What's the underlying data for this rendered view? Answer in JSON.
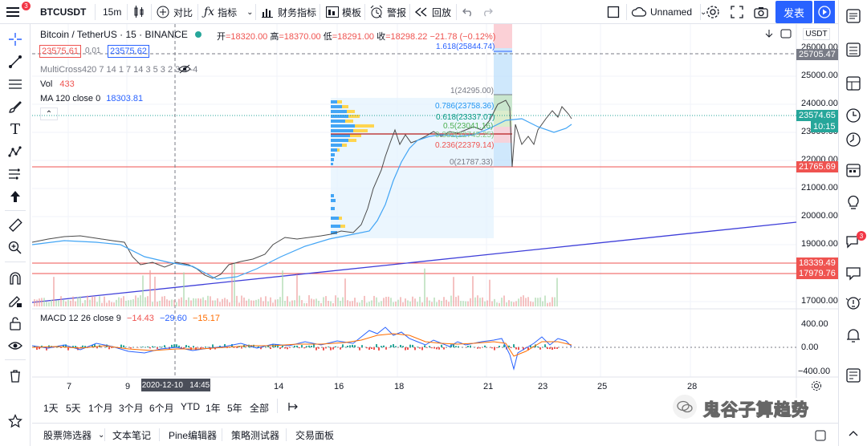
{
  "topbar": {
    "notif_count": "3",
    "symbol": "BTCUSDT",
    "interval": "15m",
    "compare": "对比",
    "indicators": "指标",
    "financials": "财务指标",
    "templates": "模板",
    "alert": "警报",
    "replay": "回放",
    "layout_name": "Unnamed",
    "publish": "发表"
  },
  "legend": {
    "title": "Bitcoin / TetherUS · 15 · BINANCE",
    "open_label": "开",
    "open": "=18320.00",
    "high_label": "高",
    "high": "=18370.00",
    "low_label": "低",
    "low": "=18291.00",
    "close_label": "收",
    "close": "=18298.22",
    "change": "−21.78 (−0.12%)",
    "bid": "23575.61",
    "spread": "0.01",
    "ask": "23575.62",
    "multicross": "MultiCross420 7 14 1 7 14 3 5 3 2 3 4 -4",
    "vol_label": "Vol",
    "vol": "433",
    "ma_label": "MA 120 close 0",
    "ma": "18303.81"
  },
  "fib": {
    "l1618": "1.618(25844.74)",
    "l1": "1(24295.00)",
    "l786": "0.786(23758.36)",
    "l618": "0.618(23337.07)",
    "l5": "0.5(23041.16)",
    "l382": "0.382(22745.25)",
    "l236": "0.236(22379.14)",
    "l0": "0(21787.33)"
  },
  "price_axis": {
    "currency": "USDT",
    "ticks": [
      "26000.00",
      "25000.00",
      "24000.00",
      "23000.00",
      "22000.00",
      "21000.00",
      "20000.00",
      "19000.00",
      "17000.00"
    ],
    "tag_25705": "25705.47",
    "tag_current": "23574.65",
    "countdown": "10:15",
    "tag_21765": "21765.69",
    "tag_18339": "18339.49",
    "tag_17979": "17979.76"
  },
  "macd": {
    "label": "MACD 12 26 close 9",
    "v1": "−14.43",
    "v2": "−29.60",
    "v3": "−15.17",
    "ticks": [
      "400.00",
      "0.00",
      "−400.00"
    ]
  },
  "time_axis": {
    "labels": [
      "7",
      "9",
      "14",
      "16",
      "18",
      "21",
      "23",
      "25",
      "28"
    ],
    "cursor_time": "2020-12-10   14:45"
  },
  "ranges": [
    "1天",
    "5天",
    "1个月",
    "3个月",
    "6个月",
    "YTD",
    "1年",
    "5年",
    "全部"
  ],
  "bottom_tabs": [
    "股票筛选器",
    "文本笔记",
    "Pine编辑器",
    "策略测试器",
    "交易面板"
  ],
  "watermark": "鬼谷子算趋势",
  "right_badge": "3",
  "colors": {
    "accent": "#2962ff",
    "up": "#26a69a",
    "down": "#ef5350",
    "ma": "#42a5f5",
    "trendline": "#3f3fd9"
  }
}
